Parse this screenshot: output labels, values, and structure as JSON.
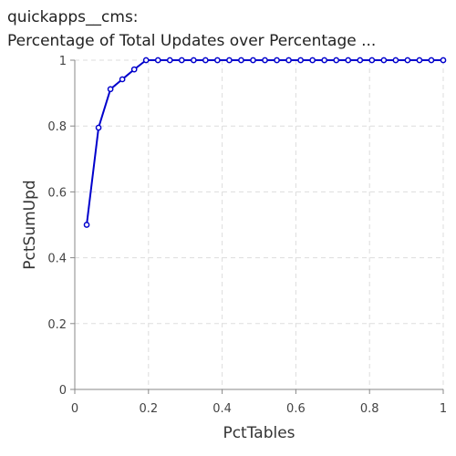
{
  "chart_data": {
    "type": "line",
    "title_line1": "quickapps__cms:",
    "title_line2": "Percentage of Total Updates over Percentage ...",
    "xlabel": "PctTables",
    "ylabel": "PctSumUpd",
    "xlim": [
      0,
      1
    ],
    "ylim": [
      0,
      1
    ],
    "xticks": [
      0,
      0.2,
      0.4,
      0.6,
      0.8,
      1
    ],
    "xtick_labels": [
      "0",
      "0.2",
      "0.4",
      "0.6",
      "0.8",
      "1"
    ],
    "yticks": [
      0,
      0.2,
      0.4,
      0.6,
      0.8,
      1
    ],
    "ytick_labels": [
      "0",
      "0.2",
      "0.4",
      "0.6",
      "0.8",
      "1"
    ],
    "grid": true,
    "series_color": "#0000cc",
    "series": [
      {
        "x": [
          0.0323,
          0.0645,
          0.0968,
          0.129,
          0.1613,
          0.1935,
          0.2258,
          0.2581,
          0.2903,
          0.3226,
          0.3548,
          0.3871,
          0.4194,
          0.4516,
          0.4839,
          0.5161,
          0.5484,
          0.5806,
          0.6129,
          0.6452,
          0.6774,
          0.7097,
          0.7419,
          0.7742,
          0.8065,
          0.8387,
          0.871,
          0.9032,
          0.9355,
          0.9677,
          1.0
        ],
        "y": [
          0.5,
          0.795,
          0.912,
          0.942,
          0.972,
          1.0,
          1.0,
          1.0,
          1.0,
          1.0,
          1.0,
          1.0,
          1.0,
          1.0,
          1.0,
          1.0,
          1.0,
          1.0,
          1.0,
          1.0,
          1.0,
          1.0,
          1.0,
          1.0,
          1.0,
          1.0,
          1.0,
          1.0,
          1.0,
          1.0,
          1.0
        ]
      }
    ]
  }
}
